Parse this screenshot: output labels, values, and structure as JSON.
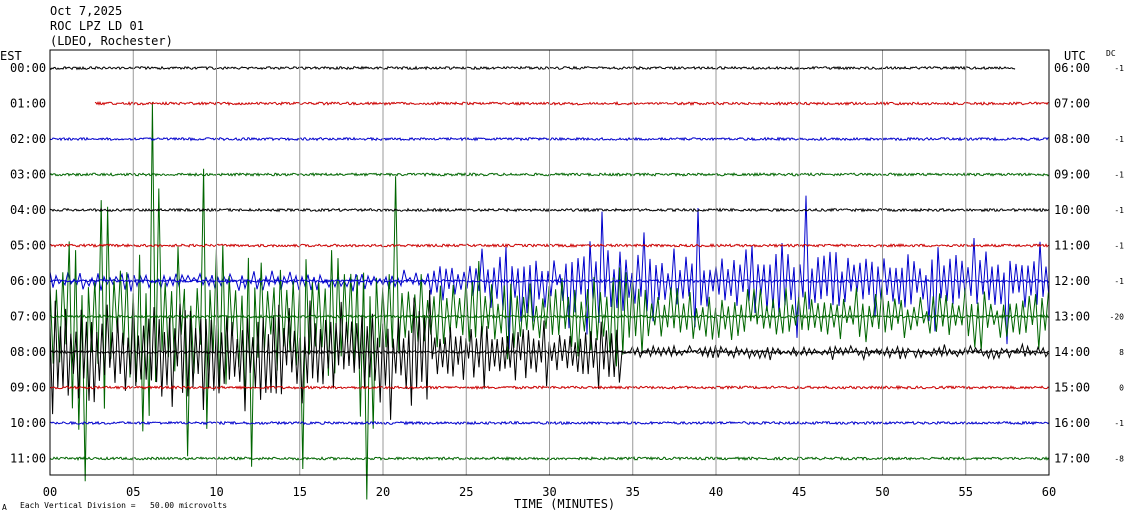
{
  "header": {
    "date": "Oct 7,2025",
    "station": "ROC LPZ LD 01",
    "location": "(LDEO, Rochester)"
  },
  "left_axis_title": "EST",
  "right_axis_title": "UTC",
  "dc_title": "DC",
  "footer": {
    "x_axis_title": "TIME (MINUTES)",
    "scale_note": "Each Vertical Division =   50.00 microvolts",
    "corner_mark": "A"
  },
  "chart_data": {
    "type": "line",
    "title": "",
    "xlabel": "TIME (MINUTES)",
    "xlim": [
      0,
      60
    ],
    "x_ticks": [
      "00",
      "05",
      "10",
      "15",
      "20",
      "25",
      "30",
      "35",
      "40",
      "45",
      "50",
      "55",
      "60"
    ],
    "x_tick_values": [
      0,
      5,
      10,
      15,
      20,
      25,
      30,
      35,
      40,
      45,
      50,
      55,
      60
    ],
    "vertical_grid": true,
    "row_spacing_minutes": 60,
    "traces": [
      {
        "est": "00:00",
        "utc": "06:00",
        "dc": "-1",
        "color": "#000000",
        "start_min": 0,
        "end_min": 58,
        "amplitude": "quiet"
      },
      {
        "est": "01:00",
        "utc": "07:00",
        "dc": "",
        "color": "#cc0000",
        "start_min": 2.7,
        "end_min": 60,
        "amplitude": "quiet"
      },
      {
        "est": "02:00",
        "utc": "08:00",
        "dc": "-1",
        "color": "#0000cc",
        "start_min": 0,
        "end_min": 60,
        "amplitude": "quiet"
      },
      {
        "est": "03:00",
        "utc": "09:00",
        "dc": "-1",
        "color": "#006600",
        "start_min": 0,
        "end_min": 60,
        "amplitude": "quiet"
      },
      {
        "est": "04:00",
        "utc": "10:00",
        "dc": "-1",
        "color": "#000000",
        "start_min": 0,
        "end_min": 60,
        "amplitude": "quiet"
      },
      {
        "est": "05:00",
        "utc": "11:00",
        "dc": "-1",
        "color": "#cc0000",
        "start_min": 0,
        "end_min": 60,
        "amplitude": "quiet"
      },
      {
        "est": "06:00",
        "utc": "12:00",
        "dc": "-1",
        "color": "#0000cc",
        "start_min": 0,
        "end_min": 60,
        "amplitude": "microseism onset ~23 min"
      },
      {
        "est": "07:00",
        "utc": "13:00",
        "dc": "-20",
        "color": "#006600",
        "start_min": 0,
        "end_min": 60,
        "amplitude": "large microseism"
      },
      {
        "est": "08:00",
        "utc": "14:00",
        "dc": "8",
        "color": "#000000",
        "start_min": 0,
        "end_min": 60,
        "amplitude": "large microseism"
      },
      {
        "est": "09:00",
        "utc": "15:00",
        "dc": "0",
        "color": "#cc0000",
        "start_min": 0,
        "end_min": 60,
        "amplitude": "quiet"
      },
      {
        "est": "10:00",
        "utc": "16:00",
        "dc": "-1",
        "color": "#0000cc",
        "start_min": 0,
        "end_min": 60,
        "amplitude": "quiet"
      },
      {
        "est": "11:00",
        "utc": "17:00",
        "dc": "-8",
        "color": "#006600",
        "start_min": 0,
        "end_min": 60,
        "amplitude": "quiet"
      }
    ]
  }
}
